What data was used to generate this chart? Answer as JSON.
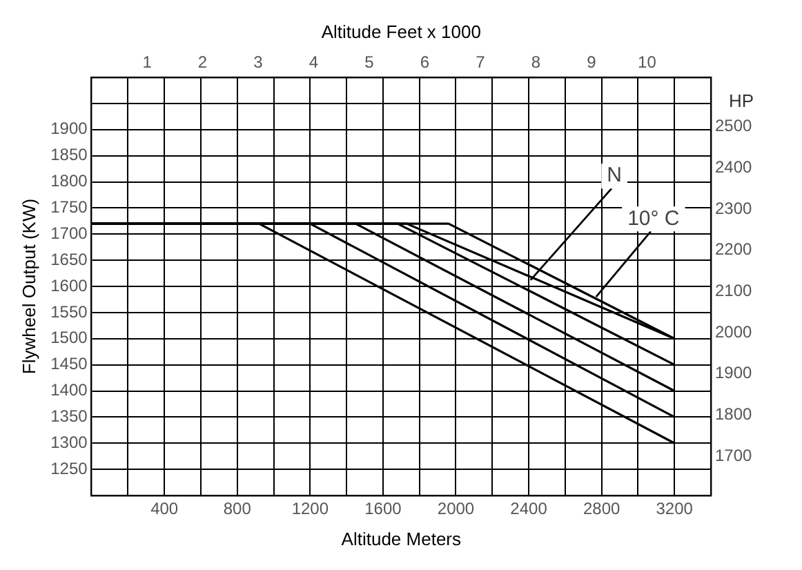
{
  "chart_data": {
    "type": "line",
    "xlabel": "Altitude Meters",
    "ylabel": "Flywheel Output (KW)",
    "x2label": "Altitude Feet x 1000",
    "y2label": "HP",
    "series": [
      {
        "color": "#000000",
        "x": [
          0,
          920,
          3200
        ],
        "values": [
          1720,
          1720,
          1300
        ]
      },
      {
        "color": "#000000",
        "x": [
          0,
          1200,
          3200
        ],
        "values": [
          1720,
          1720,
          1350
        ]
      },
      {
        "color": "#000000",
        "x": [
          0,
          1450,
          3200
        ],
        "values": [
          1720,
          1720,
          1400
        ]
      },
      {
        "color": "#000000",
        "x": [
          0,
          1680,
          3200
        ],
        "values": [
          1720,
          1720,
          1450
        ]
      },
      {
        "color": "#000000",
        "x": [
          0,
          1730,
          3200
        ],
        "values": [
          1720,
          1720,
          1500
        ]
      },
      {
        "color": "#000000",
        "x": [
          0,
          1960,
          3200
        ],
        "values": [
          1720,
          1720,
          1500
        ]
      }
    ],
    "annotations": [
      {
        "text": "N",
        "x": 2410,
        "y": 1612
      },
      {
        "text": "10° C",
        "x": 2770,
        "y": 1580
      }
    ],
    "xlim": [
      0,
      3400
    ],
    "xticks": [
      {
        "value": 200,
        "label": null
      },
      400,
      {
        "value": 600,
        "label": null
      },
      800,
      {
        "value": 1000,
        "label": null
      },
      1200,
      {
        "value": 1400,
        "label": null
      },
      1600,
      {
        "value": 1800,
        "label": null
      },
      2000,
      {
        "value": 2200,
        "label": null
      },
      2400,
      {
        "value": 2600,
        "label": null
      },
      2800,
      {
        "value": 3000,
        "label": null
      },
      3200
    ],
    "x2lim": [
      0,
      11.15
    ],
    "x2ticks": [
      1,
      2,
      3,
      4,
      5,
      6,
      7,
      8,
      9,
      10
    ],
    "ylim": [
      1200,
      2000
    ],
    "yticks": [
      1250,
      1300,
      1350,
      1400,
      1450,
      1500,
      1550,
      1600,
      1650,
      1700,
      1750,
      1800,
      1850,
      1900,
      {
        "value": 1950,
        "label": null
      }
    ],
    "y2lim": [
      1605,
      2620
    ],
    "y2ticks": [
      1700,
      1800,
      1900,
      2000,
      2100,
      2200,
      2300,
      2400,
      2500
    ],
    "grid": true,
    "legend": false,
    "marker": "none",
    "line_style": "solid"
  }
}
